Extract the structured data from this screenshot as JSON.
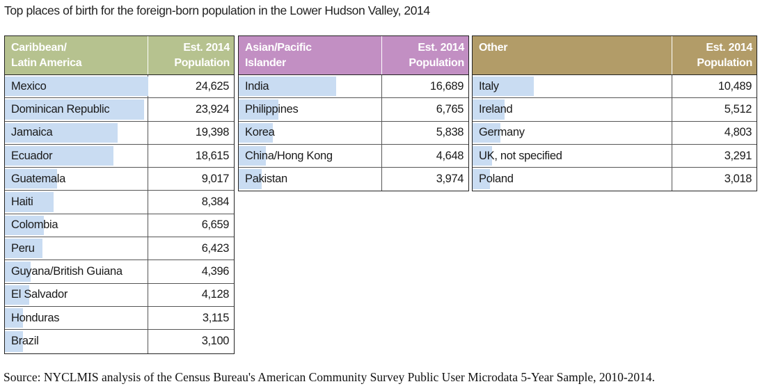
{
  "title": "Top places of birth for the foreign-born population in the Lower Hudson Valley, 2014",
  "source": "Source: NYCLMIS analysis of the Census Bureau's American Community Survey Public User Microdata 5-Year Sample, 2010-2014.",
  "colors": {
    "header_caribbean": "#b6c28f",
    "header_asian": "#c28fc3",
    "header_other": "#b29c68",
    "bar": "#c9dcf2"
  },
  "chart_data": [
    {
      "type": "table",
      "column_headers": [
        "Caribbean/\nLatin America",
        "Est. 2014\nPopulation"
      ],
      "categories": [
        "Mexico",
        "Dominican Republic",
        "Jamaica",
        "Ecuador",
        "Guatemala",
        "Haiti",
        "Colombia",
        "Peru",
        "Guyana/British Guiana",
        "El Salvador",
        "Honduras",
        "Brazil"
      ],
      "values": [
        24625,
        23924,
        19398,
        18615,
        9017,
        8384,
        6659,
        6423,
        4396,
        4128,
        3115,
        3100
      ],
      "labels": [
        "24,625",
        "23,924",
        "19,398",
        "18,615",
        "9,017",
        "8,384",
        "6,659",
        "6,423",
        "4,396",
        "4,128",
        "3,115",
        "3,100"
      ]
    },
    {
      "type": "table",
      "column_headers": [
        "Asian/Pacific\nIslander",
        "Est. 2014\nPopulation"
      ],
      "categories": [
        "India",
        "Philippines",
        "Korea",
        "China/Hong Kong",
        "Pakistan"
      ],
      "values": [
        16689,
        6765,
        5838,
        4648,
        3974
      ],
      "labels": [
        "16,689",
        "6,765",
        "5,838",
        "4,648",
        "3,974"
      ]
    },
    {
      "type": "table",
      "column_headers": [
        "Other",
        "Est. 2014\nPopulation"
      ],
      "categories": [
        "Italy",
        "Ireland",
        "Germany",
        "UK, not specified",
        "Poland"
      ],
      "values": [
        10489,
        5512,
        4803,
        3291,
        3018
      ],
      "labels": [
        "10,489",
        "5,512",
        "4,803",
        "3,291",
        "3,018"
      ]
    }
  ]
}
